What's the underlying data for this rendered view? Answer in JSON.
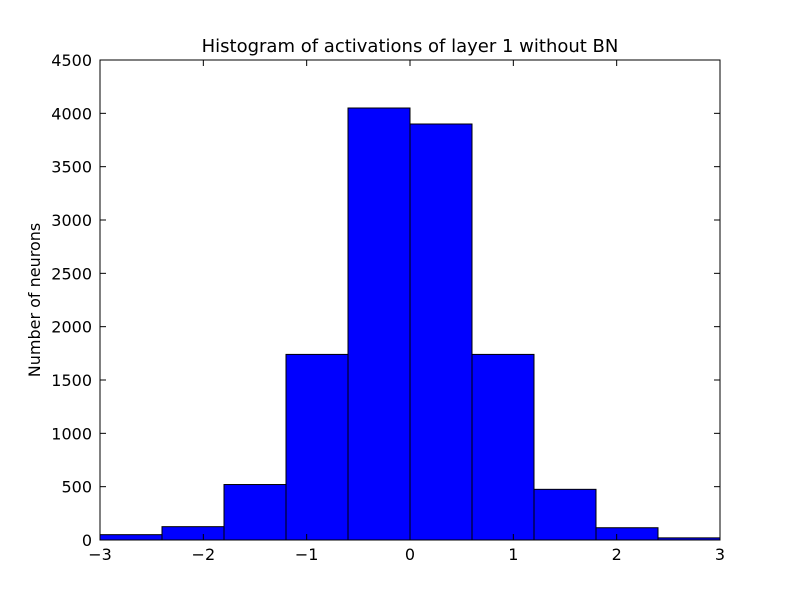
{
  "chart_data": {
    "type": "bar",
    "title": "Histogram of activations of layer 1  without BN",
    "xlabel": "",
    "ylabel": "Number of neurons",
    "xlim": [
      -3,
      3
    ],
    "ylim": [
      0,
      4500
    ],
    "bin_edges": [
      -3.0,
      -2.4,
      -1.8,
      -1.2,
      -0.6,
      0.0,
      0.6,
      1.2,
      1.8,
      2.4,
      3.0
    ],
    "values": [
      50,
      125,
      520,
      1740,
      4050,
      3900,
      1740,
      475,
      115,
      20
    ],
    "bar_color": "#0000ff",
    "x_ticks": [
      -3,
      -2,
      -1,
      0,
      1,
      2,
      3
    ],
    "x_tick_labels": [
      "−3",
      "−2",
      "−1",
      "0",
      "1",
      "2",
      "3"
    ],
    "y_ticks": [
      0,
      500,
      1000,
      1500,
      2000,
      2500,
      3000,
      3500,
      4000,
      4500
    ],
    "y_tick_labels": [
      "0",
      "500",
      "1000",
      "1500",
      "2000",
      "2500",
      "3000",
      "3500",
      "4000",
      "4500"
    ],
    "grid": false,
    "legend": "none"
  }
}
